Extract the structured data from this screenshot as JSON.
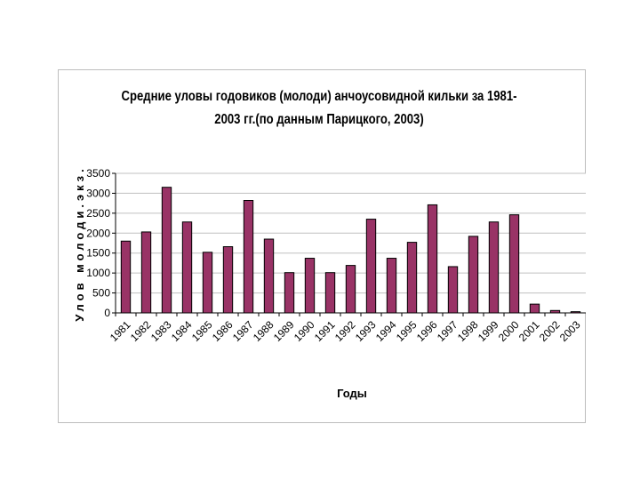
{
  "chart_data": {
    "type": "bar",
    "title_lines": [
      "Средние уловы годовиков (молоди) анчоусовидной кильки за 1981-",
      "2003 гг.(по данным Парицкого, 2003)"
    ],
    "xlabel": "Годы",
    "ylabel": "Улов молоди.экз.",
    "ylim": [
      0,
      3500
    ],
    "yticks": [
      "0",
      "500",
      "1000",
      "1500",
      "2000",
      "2500",
      "3000",
      "3500"
    ],
    "grid": true,
    "bar_color": "#993366",
    "categories": [
      "1981",
      "1982",
      "1983",
      "1984",
      "1985",
      "1986",
      "1987",
      "1988",
      "1989",
      "1990",
      "1991",
      "1992",
      "1993",
      "1994",
      "1995",
      "1996",
      "1997",
      "1998",
      "1999",
      "2000",
      "2001",
      "2002",
      "2003"
    ],
    "values": [
      1800,
      2030,
      3150,
      2280,
      1520,
      1660,
      2820,
      1850,
      1010,
      1370,
      1010,
      1190,
      2350,
      1370,
      1770,
      2710,
      1160,
      1920,
      2280,
      2460,
      220,
      60,
      30
    ]
  }
}
